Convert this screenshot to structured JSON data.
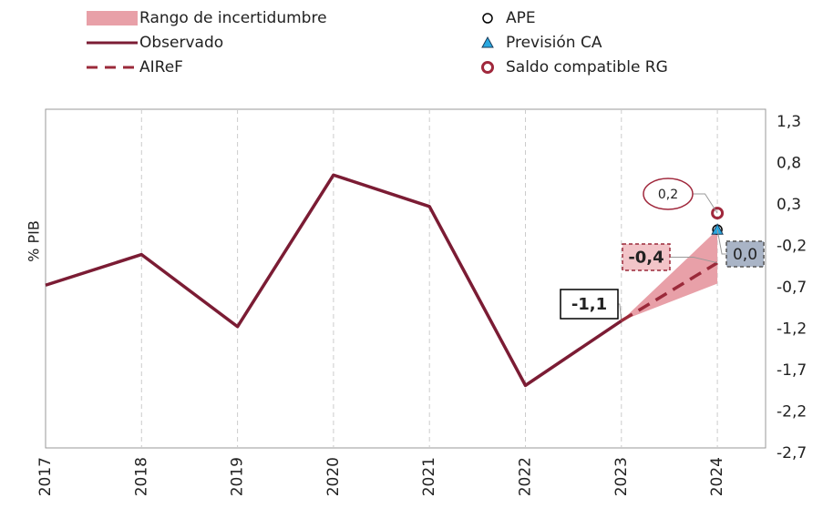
{
  "chart_data": {
    "type": "line",
    "y_label": "% PIB",
    "categories": [
      "2017",
      "2018",
      "2019",
      "2020",
      "2021",
      "2022",
      "2023",
      "2024"
    ],
    "ylim": [
      -2.7,
      1.3
    ],
    "yticks": [
      {
        "value": 1.3,
        "label": "1,3"
      },
      {
        "value": 0.8,
        "label": "0,8"
      },
      {
        "value": 0.3,
        "label": "0,3"
      },
      {
        "value": -0.2,
        "label": "-0,2"
      },
      {
        "value": -0.7,
        "label": "-0,7"
      },
      {
        "value": -1.2,
        "label": "-1,2"
      },
      {
        "value": -1.7,
        "label": "-1,7"
      },
      {
        "value": -2.2,
        "label": "-2,2"
      },
      {
        "value": -2.7,
        "label": "-2,7"
      }
    ],
    "series": [
      {
        "name": "Rango de incertidumbre",
        "kind": "area",
        "color": "#e8a0a8",
        "low": [
          null,
          null,
          null,
          null,
          null,
          null,
          -1.1,
          -0.65
        ],
        "high": [
          null,
          null,
          null,
          null,
          null,
          null,
          -1.1,
          0.0
        ]
      },
      {
        "name": "Observado",
        "kind": "line",
        "color": "#7b1c34",
        "values": [
          -0.67,
          -0.3,
          -1.17,
          0.66,
          0.28,
          -1.88,
          -1.1,
          null
        ],
        "value_labels": [
          null,
          null,
          null,
          null,
          null,
          null,
          "-1,1",
          null
        ]
      },
      {
        "name": "AIReF",
        "kind": "dashed",
        "color": "#9b2a3a",
        "values": [
          null,
          null,
          null,
          null,
          null,
          null,
          -1.1,
          -0.4
        ],
        "value_labels": [
          null,
          null,
          null,
          null,
          null,
          null,
          null,
          "-0,4"
        ]
      },
      {
        "name": "APE",
        "kind": "circle",
        "color": "#000000",
        "values": [
          null,
          null,
          null,
          null,
          null,
          null,
          null,
          0.0
        ]
      },
      {
        "name": "Previsión CA",
        "kind": "triangle",
        "color": "#29a8e0",
        "values": [
          null,
          null,
          null,
          null,
          null,
          null,
          null,
          0.0
        ],
        "value_labels": [
          null,
          null,
          null,
          null,
          null,
          null,
          null,
          "0,0"
        ]
      },
      {
        "name": "Saldo compatible RG",
        "kind": "ring",
        "color": "#a0283c",
        "values": [
          null,
          null,
          null,
          null,
          null,
          null,
          null,
          0.2
        ],
        "value_labels": [
          null,
          null,
          null,
          null,
          null,
          null,
          null,
          "0,2"
        ]
      }
    ]
  }
}
